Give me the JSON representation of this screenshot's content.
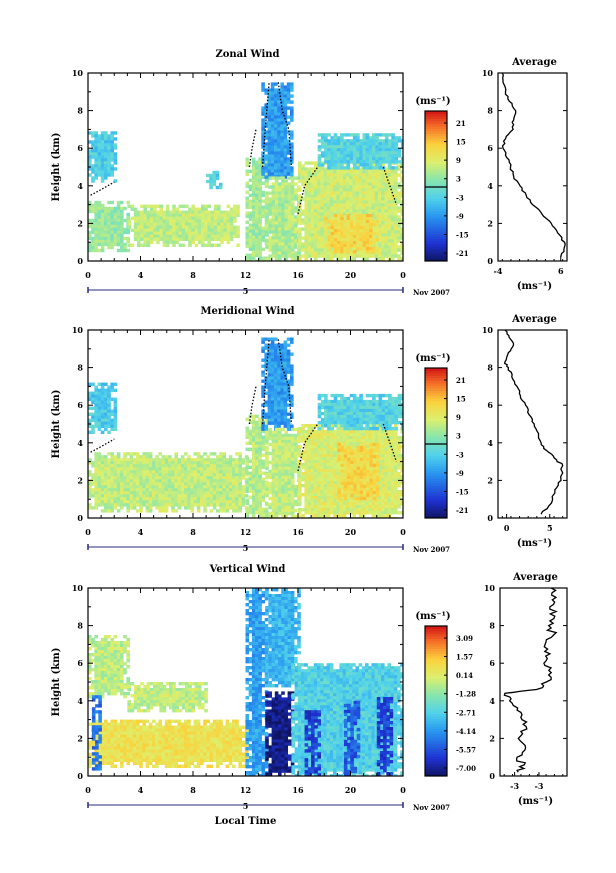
{
  "chart_data": [
    {
      "type": "heatmap",
      "title": "Zonal Wind",
      "ylabel": "Height (km)",
      "x_ticks": [
        "0",
        "4",
        "8",
        "12",
        "16",
        "20",
        "0"
      ],
      "y_ticks": [
        "0",
        "2",
        "4",
        "6",
        "8",
        "10"
      ],
      "xlim": [
        0,
        24
      ],
      "ylim": [
        0,
        10
      ],
      "date_label": "5",
      "month_label": "Nov 2007",
      "colorbar": {
        "unit": "(ms⁻¹)",
        "ticks": [
          "21",
          "15",
          "9",
          "3",
          "-3",
          "-9",
          "-15",
          "-21"
        ],
        "range": [
          -24,
          24
        ]
      },
      "fields": [
        {
          "x0": 0,
          "x1": 2,
          "y0": 4.2,
          "y1": 6.9,
          "value": -4
        },
        {
          "x0": 0,
          "x1": 3,
          "y0": 0.5,
          "y1": 3.2,
          "value": 3
        },
        {
          "x0": 3,
          "x1": 11.5,
          "y0": 0.8,
          "y1": 3.0,
          "value": 6
        },
        {
          "x0": 9,
          "x1": 10,
          "y0": 4.0,
          "y1": 4.8,
          "value": -4
        },
        {
          "x0": 12,
          "x1": 13.6,
          "y0": 0,
          "y1": 5.5,
          "value": 4
        },
        {
          "x0": 13.2,
          "x1": 15.5,
          "y0": 4.5,
          "y1": 9.5,
          "value": -9
        },
        {
          "x0": 13.5,
          "x1": 16,
          "y0": 0,
          "y1": 4.5,
          "value": 5
        },
        {
          "x0": 16,
          "x1": 24,
          "y0": 0,
          "y1": 5.3,
          "value": 7
        },
        {
          "x0": 18,
          "x1": 22,
          "y0": 0.5,
          "y1": 2.5,
          "value": 12
        },
        {
          "x0": 17.5,
          "x1": 24,
          "y0": 5.0,
          "y1": 6.8,
          "value": -3
        }
      ],
      "average": {
        "xlim": [
          -4,
          7
        ],
        "x_ticks": [
          "-4",
          "6"
        ],
        "y_ticks": [
          "0",
          "2",
          "4",
          "6",
          "8",
          "10"
        ],
        "xlabel": "(ms⁻¹)",
        "profile": [
          [
            6,
            0.2
          ],
          [
            6.5,
            0.6
          ],
          [
            6.6,
            1
          ],
          [
            5.5,
            1.5
          ],
          [
            4.5,
            2
          ],
          [
            3,
            2.5
          ],
          [
            1.5,
            3
          ],
          [
            0.5,
            3.5
          ],
          [
            -0.5,
            4
          ],
          [
            -1.5,
            4.5
          ],
          [
            -2,
            5
          ],
          [
            -2.6,
            5.5
          ],
          [
            -3.2,
            6
          ],
          [
            -2.8,
            6.5
          ],
          [
            -1.6,
            7
          ],
          [
            -1.5,
            7.5
          ],
          [
            -1.2,
            8
          ],
          [
            -2.2,
            8.5
          ],
          [
            -2.8,
            9
          ],
          [
            -3.2,
            9.5
          ],
          [
            -3.3,
            10
          ]
        ]
      }
    },
    {
      "type": "heatmap",
      "title": "Meridional Wind",
      "ylabel": "Height (km)",
      "x_ticks": [
        "0",
        "4",
        "8",
        "12",
        "16",
        "20",
        "0"
      ],
      "y_ticks": [
        "0",
        "2",
        "4",
        "6",
        "8",
        "10"
      ],
      "xlim": [
        0,
        24
      ],
      "ylim": [
        0,
        10
      ],
      "date_label": "5",
      "month_label": "Nov 2007",
      "colorbar": {
        "unit": "(ms⁻¹)",
        "ticks": [
          "21",
          "15",
          "9",
          "3",
          "-3",
          "-9",
          "-15",
          "-21"
        ],
        "range": [
          -24,
          24
        ]
      },
      "fields": [
        {
          "x0": 0,
          "x1": 2,
          "y0": 4.5,
          "y1": 7.2,
          "value": -4
        },
        {
          "x0": 0,
          "x1": 12,
          "y0": 0.4,
          "y1": 3.5,
          "value": 6
        },
        {
          "x0": 12,
          "x1": 13.6,
          "y0": 0,
          "y1": 5.5,
          "value": 5
        },
        {
          "x0": 13.2,
          "x1": 15.5,
          "y0": 4.8,
          "y1": 9.6,
          "value": -9
        },
        {
          "x0": 13.5,
          "x1": 16,
          "y0": 0,
          "y1": 4.8,
          "value": 6
        },
        {
          "x0": 16,
          "x1": 24,
          "y0": 0,
          "y1": 5.0,
          "value": 8
        },
        {
          "x0": 19,
          "x1": 22,
          "y0": 1.0,
          "y1": 4.0,
          "value": 12
        },
        {
          "x0": 17.5,
          "x1": 24,
          "y0": 4.8,
          "y1": 6.6,
          "value": -3
        }
      ],
      "average": {
        "xlim": [
          -1,
          7
        ],
        "x_ticks": [
          "0",
          "5"
        ],
        "y_ticks": [
          "0",
          "2",
          "4",
          "6",
          "8",
          "10"
        ],
        "xlabel": "(ms⁻¹)",
        "profile": [
          [
            4,
            0.2
          ],
          [
            5.2,
            0.8
          ],
          [
            5.6,
            1.5
          ],
          [
            6.3,
            2
          ],
          [
            6.5,
            2.8
          ],
          [
            5.5,
            3.2
          ],
          [
            4.6,
            3.6
          ],
          [
            4,
            4
          ],
          [
            3.7,
            4.5
          ],
          [
            3.2,
            5
          ],
          [
            2.6,
            5.5
          ],
          [
            2.2,
            6
          ],
          [
            1.6,
            6.5
          ],
          [
            1.2,
            7
          ],
          [
            0.6,
            7.5
          ],
          [
            0.2,
            8
          ],
          [
            -0.2,
            8.3
          ],
          [
            0.2,
            8.8
          ],
          [
            0.8,
            9.2
          ],
          [
            0.3,
            9.6
          ],
          [
            -0.2,
            10
          ]
        ]
      }
    },
    {
      "type": "heatmap",
      "title": "Vertical Wind",
      "ylabel": "Height (km)",
      "xlabel": "Local Time",
      "x_ticks": [
        "0",
        "4",
        "8",
        "12",
        "16",
        "20",
        "0"
      ],
      "y_ticks": [
        "0",
        "2",
        "4",
        "6",
        "8",
        "10"
      ],
      "xlim": [
        0,
        24
      ],
      "ylim": [
        0,
        10
      ],
      "date_label": "5",
      "month_label": "Nov 2007",
      "colorbar": {
        "unit": "(ms⁻¹)",
        "ticks": [
          "3.09",
          "1.57",
          "0.14",
          "-1.28",
          "-2.71",
          "-4.14",
          "-5.57",
          "-7.00"
        ],
        "range": [
          -7.7,
          3.8
        ]
      },
      "fields": [
        {
          "x0": 0,
          "x1": 3,
          "y0": 4.3,
          "y1": 7.5,
          "value": -0.6
        },
        {
          "x0": 0,
          "x1": 12,
          "y0": 0.5,
          "y1": 3.0,
          "value": 0.6
        },
        {
          "x0": 0.3,
          "x1": 1.0,
          "y0": 0.2,
          "y1": 4.3,
          "value": -5
        },
        {
          "x0": 3,
          "x1": 9,
          "y0": 3.5,
          "y1": 5.0,
          "value": -0.5
        },
        {
          "x0": 12,
          "x1": 13.5,
          "y0": 0,
          "y1": 10,
          "value": -4
        },
        {
          "x0": 13.5,
          "x1": 15.5,
          "y0": 0,
          "y1": 4.5,
          "value": -7.2
        },
        {
          "x0": 13.5,
          "x1": 16,
          "y0": 4.8,
          "y1": 10,
          "value": -3.5
        },
        {
          "x0": 15.5,
          "x1": 24,
          "y0": 0,
          "y1": 6.0,
          "value": -2.8
        },
        {
          "x0": 16.5,
          "x1": 17.5,
          "y0": 0,
          "y1": 3.5,
          "value": -6
        },
        {
          "x0": 19.5,
          "x1": 20.5,
          "y0": 0,
          "y1": 4.0,
          "value": -5.5
        },
        {
          "x0": 22,
          "x1": 23,
          "y0": 0,
          "y1": 4.2,
          "value": -6
        }
      ],
      "average": {
        "xlim": [
          -5,
          0.5
        ],
        "x_ticks": [
          "-3",
          "-3"
        ],
        "y_ticks": [
          "0",
          "2",
          "4",
          "6",
          "8",
          "10"
        ],
        "xlabel": "(ms⁻¹)",
        "profile": [
          [
            -3.5,
            0.2
          ],
          [
            -3.0,
            0.6
          ],
          [
            -3.6,
            1
          ],
          [
            -2.9,
            1.5
          ],
          [
            -3.5,
            2
          ],
          [
            -2.8,
            2.5
          ],
          [
            -3.2,
            3
          ],
          [
            -3.6,
            3.5
          ],
          [
            -4.2,
            4
          ],
          [
            -4.6,
            4.4
          ],
          [
            -2.0,
            4.6
          ],
          [
            -1.2,
            5
          ],
          [
            -0.8,
            5.5
          ],
          [
            -1.4,
            6
          ],
          [
            -0.9,
            6.5
          ],
          [
            -1.3,
            7
          ],
          [
            -0.6,
            7.5
          ],
          [
            -1.0,
            8
          ],
          [
            -0.5,
            8.5
          ],
          [
            -0.9,
            9
          ],
          [
            -0.4,
            9.5
          ],
          [
            -0.8,
            10
          ]
        ]
      }
    }
  ]
}
